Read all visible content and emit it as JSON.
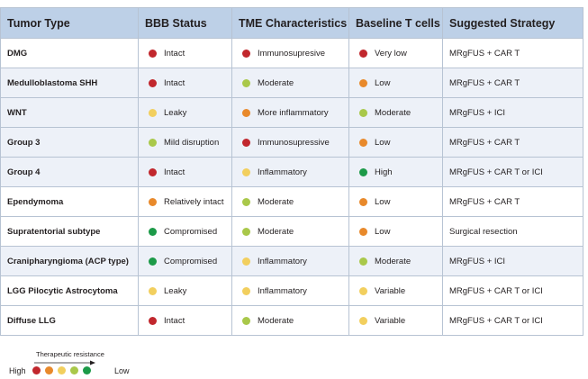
{
  "colors": {
    "red": "#c1272d",
    "orange": "#e8892b",
    "yellow": "#f2cf5e",
    "lime": "#a9c84a",
    "green": "#1c9a48"
  },
  "table": {
    "headers": [
      "Tumor Type",
      "BBB Status",
      "TME Characteristics",
      "Baseline T cells",
      "Suggested Strategy"
    ],
    "rows": [
      {
        "type": "DMG",
        "group": 0,
        "bbb": {
          "text": "Intact",
          "color": "red"
        },
        "tme": {
          "text": "Immunosupresive",
          "color": "red"
        },
        "tcells": {
          "text": "Very low",
          "color": "red"
        },
        "strategy": "MRgFUS + CAR T"
      },
      {
        "type": "Medulloblastoma SHH",
        "group": 1,
        "bbb": {
          "text": "Intact",
          "color": "red"
        },
        "tme": {
          "text": "Moderate",
          "color": "lime"
        },
        "tcells": {
          "text": "Low",
          "color": "orange"
        },
        "strategy": "MRgFUS + CAR T"
      },
      {
        "type": "WNT",
        "group": 1,
        "bbb": {
          "text": "Leaky",
          "color": "yellow"
        },
        "tme": {
          "text": "More inflammatory",
          "color": "orange"
        },
        "tcells": {
          "text": "Moderate",
          "color": "lime"
        },
        "strategy": "MRgFUS + ICI"
      },
      {
        "type": "Group 3",
        "group": 1,
        "bbb": {
          "text": "Mild disruption",
          "color": "lime"
        },
        "tme": {
          "text": "Immunosupressive",
          "color": "red"
        },
        "tcells": {
          "text": "Low",
          "color": "orange"
        },
        "strategy": "MRgFUS + CAR T"
      },
      {
        "type": "Group 4",
        "group": 1,
        "bbb": {
          "text": "Intact",
          "color": "red"
        },
        "tme": {
          "text": "Inflammatory",
          "color": "yellow"
        },
        "tcells": {
          "text": "High",
          "color": "green"
        },
        "strategy": "MRgFUS + CAR T or ICI"
      },
      {
        "type": "Ependymoma",
        "group": 2,
        "bbb": {
          "text": "Relatively intact",
          "color": "orange"
        },
        "tme": {
          "text": "Moderate",
          "color": "lime"
        },
        "tcells": {
          "text": "Low",
          "color": "orange"
        },
        "strategy": "MRgFUS + CAR T"
      },
      {
        "type": "Supratentorial subtype",
        "group": 2,
        "bbb": {
          "text": "Compromised",
          "color": "green"
        },
        "tme": {
          "text": "Moderate",
          "color": "lime"
        },
        "tcells": {
          "text": "Low",
          "color": "orange"
        },
        "strategy": "Surgical resection"
      },
      {
        "type": "Cranipharyngioma (ACP type)",
        "group": 3,
        "bbb": {
          "text": "Compromised",
          "color": "green"
        },
        "tme": {
          "text": "Inflammatory",
          "color": "yellow"
        },
        "tcells": {
          "text": "Moderate",
          "color": "lime"
        },
        "strategy": "MRgFUS + ICI"
      },
      {
        "type": "LGG Pilocytic Astrocytoma",
        "group": 4,
        "bbb": {
          "text": "Leaky",
          "color": "yellow"
        },
        "tme": {
          "text": "Inflammatory",
          "color": "yellow"
        },
        "tcells": {
          "text": "Variable",
          "color": "yellow"
        },
        "strategy": "MRgFUS + CAR T or ICI"
      },
      {
        "type": "Diffuse LLG",
        "group": 4,
        "bbb": {
          "text": "Intact",
          "color": "red"
        },
        "tme": {
          "text": "Moderate",
          "color": "lime"
        },
        "tcells": {
          "text": "Variable",
          "color": "yellow"
        },
        "strategy": "MRgFUS + CAR T or ICI"
      }
    ]
  },
  "legend": {
    "arrow_label": "Therapeutic resistance",
    "high_label": "High",
    "low_label": "Low",
    "scale": [
      "red",
      "orange",
      "yellow",
      "lime",
      "green"
    ]
  }
}
